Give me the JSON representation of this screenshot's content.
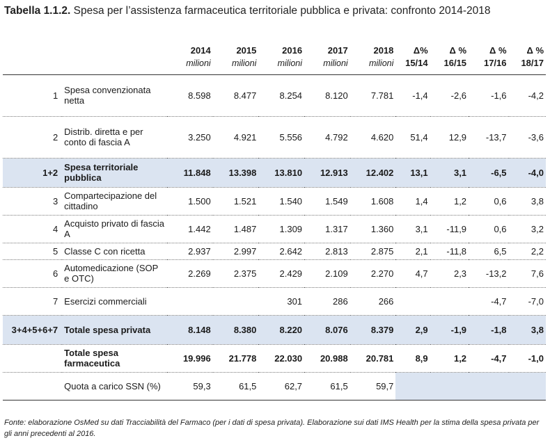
{
  "title": {
    "number": "Tabella 1.1.2.",
    "text": "Spesa per l’assistenza farmaceutica territoriale pubblica e privata: confronto 2014-2018"
  },
  "header": {
    "years": [
      "2014",
      "2015",
      "2016",
      "2017",
      "2018"
    ],
    "unit": "milioni",
    "deltas": [
      {
        "symbol": "Δ%",
        "period": "15/14"
      },
      {
        "symbol": "Δ %",
        "period": "16/15"
      },
      {
        "symbol": "Δ %",
        "period": "17/16"
      },
      {
        "symbol": "Δ %",
        "period": "18/17"
      }
    ]
  },
  "rows": [
    {
      "id": "1",
      "label": "Spesa convenzionata netta",
      "values": [
        "8.598",
        "8.477",
        "8.254",
        "8.120",
        "7.781",
        "-1,4",
        "-2,6",
        "-1,6",
        "-4,2"
      ]
    },
    {
      "id": "2",
      "label": "Distrib. diretta e per conto di fascia A",
      "values": [
        "3.250",
        "4.921",
        "5.556",
        "4.792",
        "4.620",
        "51,4",
        "12,9",
        "-13,7",
        "-3,6"
      ]
    },
    {
      "id": "1+2",
      "label": "Spesa territoriale pubblica",
      "values": [
        "11.848",
        "13.398",
        "13.810",
        "12.913",
        "12.402",
        "13,1",
        "3,1",
        "-6,5",
        "-4,0"
      ]
    },
    {
      "id": "3",
      "label": "Compartecipazione del cittadino",
      "values": [
        "1.500",
        "1.521",
        "1.540",
        "1.549",
        "1.608",
        "1,4",
        "1,2",
        "0,6",
        "3,8"
      ]
    },
    {
      "id": "4",
      "label": "Acquisto privato di fascia A",
      "values": [
        "1.442",
        "1.487",
        "1.309",
        "1.317",
        "1.360",
        "3,1",
        "-11,9",
        "0,6",
        "3,2"
      ]
    },
    {
      "id": "5",
      "label": "Classe C con ricetta",
      "values": [
        "2.937",
        "2.997",
        "2.642",
        "2.813",
        "2.875",
        "2,1",
        "-11,8",
        "6,5",
        "2,2"
      ]
    },
    {
      "id": "6",
      "label": "Automedicazione (SOP e OTC)",
      "values": [
        "2.269",
        "2.375",
        "2.429",
        "2.109",
        "2.270",
        "4,7",
        "2,3",
        "-13,2",
        "7,6"
      ]
    },
    {
      "id": "7",
      "label": "Esercizi commerciali",
      "values": [
        "",
        "",
        "301",
        "286",
        "266",
        "",
        "",
        "-4,7",
        "-7,0"
      ]
    },
    {
      "id": "3+4+5+6+7",
      "label": "Totale spesa privata",
      "values": [
        "8.148",
        "8.380",
        "8.220",
        "8.076",
        "8.379",
        "2,9",
        "-1,9",
        "-1,8",
        "3,8"
      ]
    },
    {
      "id": "",
      "label": "Totale spesa farmaceutica",
      "values": [
        "19.996",
        "21.778",
        "22.030",
        "20.988",
        "20.781",
        "8,9",
        "1,2",
        "-4,7",
        "-1,0"
      ]
    },
    {
      "id": "",
      "label": "Quota a carico SSN (%)",
      "values": [
        "59,3",
        "61,5",
        "62,7",
        "61,5",
        "59,7",
        "",
        "",
        "",
        ""
      ]
    }
  ],
  "source": "Fonte: elaborazione OsMed su dati Tracciabilità del Farmaco (per i dati di spesa privata). Elaborazione sui dati IMS Health per la stima della spesa privata per gli anni precedenti al 2016."
}
